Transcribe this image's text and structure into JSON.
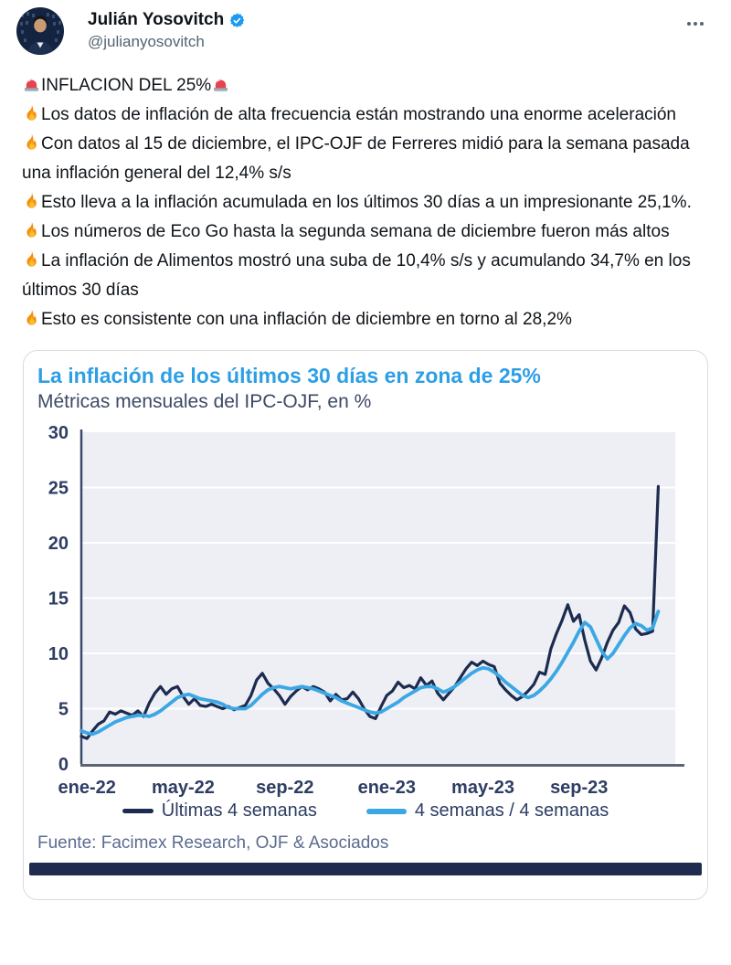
{
  "header": {
    "display_name": "Julián Yosovitch",
    "handle": "@julianyosovitch",
    "verified": true
  },
  "tweet": {
    "paragraphs": [
      {
        "icons_before": [
          "siren"
        ],
        "text": "INFLACION DEL 25%",
        "icons_after": [
          "siren"
        ]
      },
      {
        "icons_before": [
          "fire"
        ],
        "text": "Los datos de inflación de alta frecuencia están mostrando una enorme aceleración",
        "icons_after": []
      },
      {
        "icons_before": [
          "fire"
        ],
        "text": "Con datos al 15 de diciembre, el IPC-OJF de Ferreres midió para la semana pasada una inflación general del 12,4% s/s",
        "icons_after": []
      },
      {
        "icons_before": [
          "fire"
        ],
        "text": "Esto lleva a la inflación acumulada en los últimos 30 días a un impresionante 25,1%.",
        "icons_after": []
      },
      {
        "icons_before": [
          "fire"
        ],
        "text": "Los números de Eco Go hasta la segunda semana de diciembre fueron más altos",
        "icons_after": []
      },
      {
        "icons_before": [
          "fire"
        ],
        "text": "La inflación de Alimentos mostró una suba de 10,4% s/s y acumulando 34,7% en los últimos 30 días",
        "icons_after": []
      },
      {
        "icons_before": [
          "fire"
        ],
        "text": "Esto es consistente con una inflación de diciembre en torno al 28,2%",
        "icons_after": []
      }
    ]
  },
  "chart_card": {
    "title": "La inflación de los últimos 30 días en zona de 25%",
    "subtitle": "Métricas mensuales del IPC-OJF, en %",
    "source": "Fuente: Facimex Research, OJF & Asociados",
    "title_color": "#2e9fe4",
    "footer_bar_color": "#1f2c4e"
  },
  "chart_data": {
    "type": "line",
    "title": "La inflación de los últimos 30 días en zona de 25%",
    "subtitle": "Métricas mensuales del IPC-OJF, en %",
    "xlabel": "",
    "ylabel": "",
    "ylim": [
      0,
      30
    ],
    "y_ticks": [
      0,
      5,
      10,
      15,
      20,
      25,
      30
    ],
    "grid": true,
    "legend_position": "bottom",
    "plot_bg": "#edeff4",
    "grid_color": "#ffffff",
    "tick_color": "#2e3d63",
    "x_unit": "weeks since Jan 2022",
    "x_domain_weeks": [
      0,
      105
    ],
    "x_tick_weeks": [
      1,
      18,
      36,
      54,
      71,
      88
    ],
    "x_tick_labels": [
      "ene-22",
      "may-22",
      "sep-22",
      "ene-23",
      "may-23",
      "sep-23"
    ],
    "series": [
      {
        "name": "Últimas 4 semanas",
        "color": "#1c2b4f",
        "values": [
          2.5,
          2.3,
          3.0,
          3.6,
          3.9,
          4.7,
          4.5,
          4.8,
          4.6,
          4.4,
          4.8,
          4.3,
          5.5,
          6.4,
          7.0,
          6.3,
          6.8,
          7.0,
          6.1,
          5.4,
          5.9,
          5.3,
          5.2,
          5.4,
          5.2,
          5.0,
          5.2,
          4.9,
          5.1,
          5.3,
          6.2,
          7.6,
          8.2,
          7.3,
          6.8,
          6.2,
          5.4,
          6.1,
          6.6,
          7.0,
          6.7,
          7.0,
          6.8,
          6.5,
          5.7,
          6.3,
          5.8,
          5.9,
          6.5,
          5.9,
          5.0,
          4.3,
          4.1,
          5.2,
          6.2,
          6.6,
          7.4,
          6.9,
          7.1,
          6.8,
          7.8,
          7.1,
          7.5,
          6.4,
          5.8,
          6.4,
          7.0,
          7.8,
          8.6,
          9.2,
          8.9,
          9.3,
          9.0,
          8.8,
          7.3,
          6.7,
          6.2,
          5.8,
          6.1,
          6.6,
          7.2,
          8.3,
          8.1,
          10.4,
          11.8,
          13.0,
          14.4,
          12.9,
          13.5,
          11.2,
          9.3,
          8.5,
          9.6,
          11.0,
          12.1,
          12.8,
          14.3,
          13.7,
          12.2,
          11.7,
          11.8,
          12.0,
          25.1
        ]
      },
      {
        "name": "4 semanas / 4 semanas",
        "color": "#3ba7e5",
        "values": [
          3.0,
          2.8,
          2.7,
          2.9,
          3.2,
          3.5,
          3.8,
          4.0,
          4.2,
          4.3,
          4.4,
          4.4,
          4.3,
          4.5,
          4.8,
          5.2,
          5.6,
          6.0,
          6.2,
          6.3,
          6.1,
          5.9,
          5.8,
          5.7,
          5.6,
          5.4,
          5.1,
          5.0,
          5.0,
          5.0,
          5.3,
          5.8,
          6.3,
          6.7,
          6.9,
          7.0,
          6.9,
          6.8,
          6.9,
          7.0,
          6.9,
          6.8,
          6.6,
          6.4,
          6.2,
          6.0,
          5.7,
          5.5,
          5.3,
          5.1,
          4.9,
          4.7,
          4.6,
          4.7,
          5.0,
          5.3,
          5.6,
          6.0,
          6.3,
          6.6,
          6.9,
          7.0,
          7.0,
          6.8,
          6.5,
          6.7,
          7.0,
          7.4,
          7.8,
          8.2,
          8.5,
          8.7,
          8.6,
          8.3,
          7.9,
          7.4,
          7.0,
          6.6,
          6.2,
          6.0,
          6.2,
          6.6,
          7.1,
          7.7,
          8.4,
          9.2,
          10.1,
          11.0,
          12.0,
          12.8,
          12.4,
          11.3,
          10.2,
          9.5,
          10.0,
          10.8,
          11.6,
          12.3,
          12.7,
          12.5,
          12.1,
          12.3,
          13.8
        ]
      }
    ]
  }
}
